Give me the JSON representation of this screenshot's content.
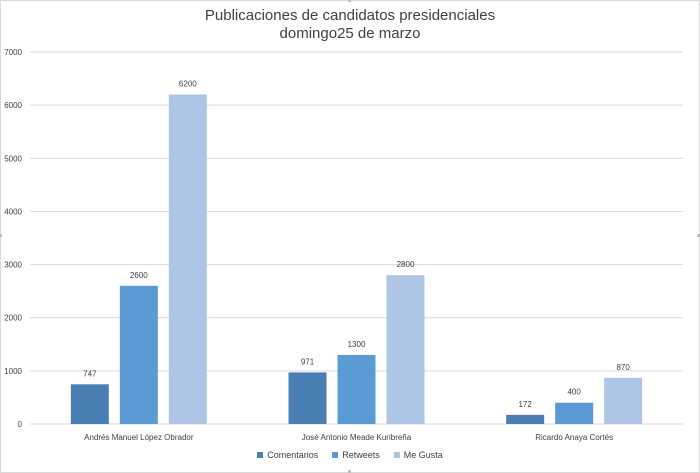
{
  "colors": {
    "Comentarios": "#4a7fb3",
    "Retweets": "#5a9bd6",
    "Me Gusta": "#aec5e5",
    "grid": "#d9d9d9",
    "text": "#404040"
  },
  "chart_data": {
    "type": "bar",
    "title": "Publicaciones de candidatos presidenciales",
    "subtitle": "domingo25 de marzo",
    "categories": [
      "Andrés Manuel López Obrador",
      "José Antonio Meade Kuribreña",
      "Ricardo Anaya Cortés"
    ],
    "series": [
      {
        "name": "Comentarios",
        "values": [
          747,
          971,
          172
        ]
      },
      {
        "name": "Retweets",
        "values": [
          2600,
          1300,
          400
        ]
      },
      {
        "name": "Me Gusta",
        "values": [
          6200,
          2800,
          870
        ]
      }
    ],
    "ylim": [
      0,
      7000
    ],
    "yticks": [
      0,
      1000,
      2000,
      3000,
      4000,
      5000,
      6000,
      7000
    ],
    "grid": true,
    "legend_position": "bottom",
    "data_labels": true
  }
}
